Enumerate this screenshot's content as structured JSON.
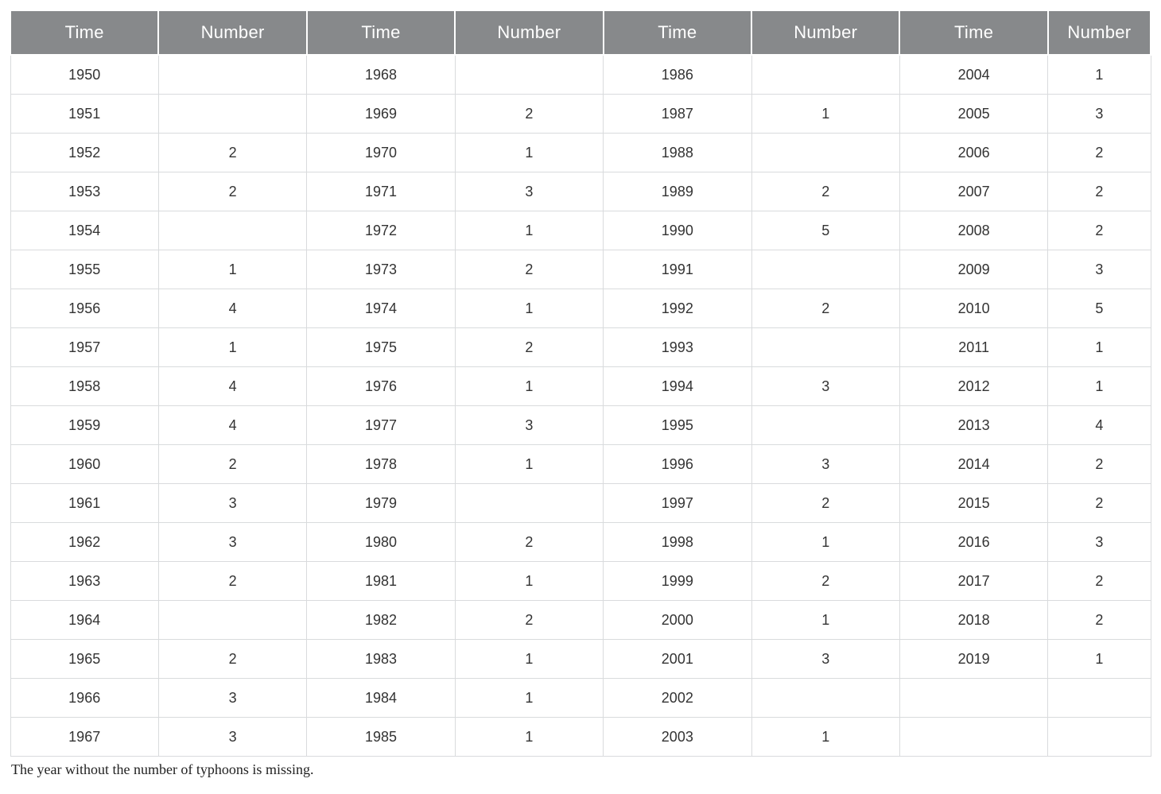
{
  "table": {
    "type": "table",
    "header_bg": "#87898b",
    "header_text_color": "#ffffff",
    "header_border_color": "#ffffff",
    "cell_border_color": "#d9dbdd",
    "cell_text_color": "#333333",
    "background_color": "#ffffff",
    "header_fontsize": 22,
    "cell_fontsize": 18,
    "column_widths_pct": [
      13,
      13,
      13,
      13,
      13,
      13,
      13,
      9
    ],
    "columns": [
      "Time",
      "Number",
      "Time",
      "Number",
      "Time",
      "Number",
      "Time",
      "Number"
    ],
    "rows": [
      [
        "1950",
        "",
        "1968",
        "",
        "1986",
        "",
        "2004",
        "1"
      ],
      [
        "1951",
        "",
        "1969",
        "2",
        "1987",
        "1",
        "2005",
        "3"
      ],
      [
        "1952",
        "2",
        "1970",
        "1",
        "1988",
        "",
        "2006",
        "2"
      ],
      [
        "1953",
        "2",
        "1971",
        "3",
        "1989",
        "2",
        "2007",
        "2"
      ],
      [
        "1954",
        "",
        "1972",
        "1",
        "1990",
        "5",
        "2008",
        "2"
      ],
      [
        "1955",
        "1",
        "1973",
        "2",
        "1991",
        "",
        "2009",
        "3"
      ],
      [
        "1956",
        "4",
        "1974",
        "1",
        "1992",
        "2",
        "2010",
        "5"
      ],
      [
        "1957",
        "1",
        "1975",
        "2",
        "1993",
        "",
        "2011",
        "1"
      ],
      [
        "1958",
        "4",
        "1976",
        "1",
        "1994",
        "3",
        "2012",
        "1"
      ],
      [
        "1959",
        "4",
        "1977",
        "3",
        "1995",
        "",
        "2013",
        "4"
      ],
      [
        "1960",
        "2",
        "1978",
        "1",
        "1996",
        "3",
        "2014",
        "2"
      ],
      [
        "1961",
        "3",
        "1979",
        "",
        "1997",
        "2",
        "2015",
        "2"
      ],
      [
        "1962",
        "3",
        "1980",
        "2",
        "1998",
        "1",
        "2016",
        "3"
      ],
      [
        "1963",
        "2",
        "1981",
        "1",
        "1999",
        "2",
        "2017",
        "2"
      ],
      [
        "1964",
        "",
        "1982",
        "2",
        "2000",
        "1",
        "2018",
        "2"
      ],
      [
        "1965",
        "2",
        "1983",
        "1",
        "2001",
        "3",
        "2019",
        "1"
      ],
      [
        "1966",
        "3",
        "1984",
        "1",
        "2002",
        "",
        "",
        ""
      ],
      [
        "1967",
        "3",
        "1985",
        "1",
        "2003",
        "1",
        "",
        ""
      ]
    ]
  },
  "footnote": "The year without the number of typhoons is missing."
}
